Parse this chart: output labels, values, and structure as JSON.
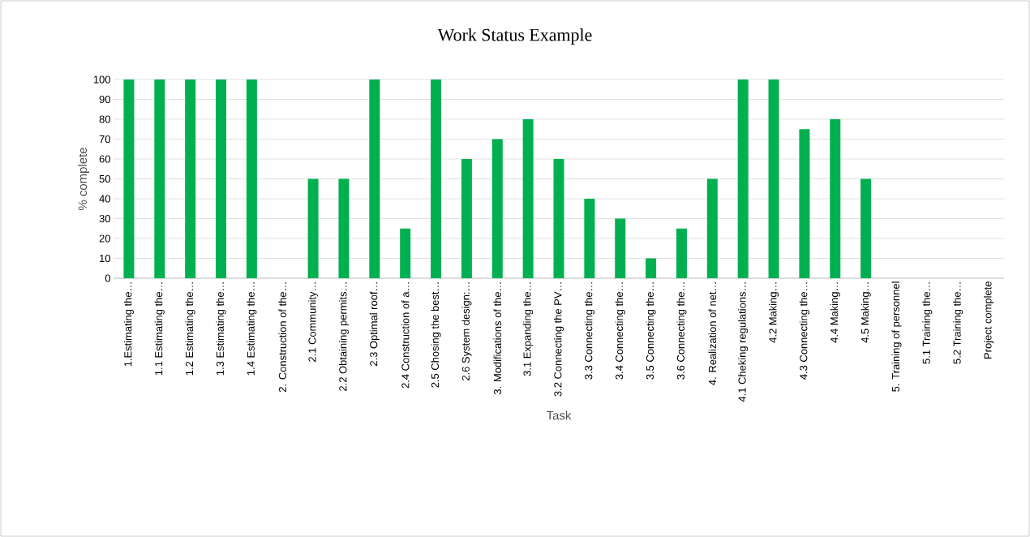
{
  "chart_data": {
    "type": "bar",
    "title": "Work Status Example",
    "xlabel": "Task",
    "ylabel": "% complete",
    "categories": [
      "1.Estimating the…",
      "1.1 Estimating the…",
      "1.2 Estimating the…",
      "1.3 Estimating the…",
      "1.4 Estimating the…",
      "2. Construction of the…",
      "2.1 Community…",
      "2.2 Obtaining permits…",
      "2.3 Optimal roof…",
      "2.4 Construction of a…",
      "2.5 Chosing the best…",
      "2.6 System design:…",
      "3. Modifications of the…",
      "3.1 Expanding the…",
      "3.2 Connecting the PV…",
      "3.3 Connecting the…",
      "3.4 Connecting the…",
      "3.5 Connecting the…",
      "3.6 Connecting the…",
      "4. Realization of net…",
      "4.1 Cheking regulations…",
      "4.2 Making…",
      "4.3 Connecting the…",
      "4.4 Making…",
      "4.5 Making…",
      "5. Training of personnel",
      "5.1 Training the…",
      "5.2 Training the…",
      "Project complete"
    ],
    "values": [
      100,
      100,
      100,
      100,
      100,
      0,
      50,
      50,
      100,
      25,
      100,
      60,
      70,
      80,
      60,
      40,
      30,
      10,
      25,
      50,
      100,
      100,
      75,
      80,
      50,
      0,
      0,
      0,
      0
    ],
    "color": "#00b050",
    "ylim": [
      0,
      100
    ],
    "yticks": [
      0,
      10,
      20,
      30,
      40,
      50,
      60,
      70,
      80,
      90,
      100
    ],
    "grid": "y"
  }
}
